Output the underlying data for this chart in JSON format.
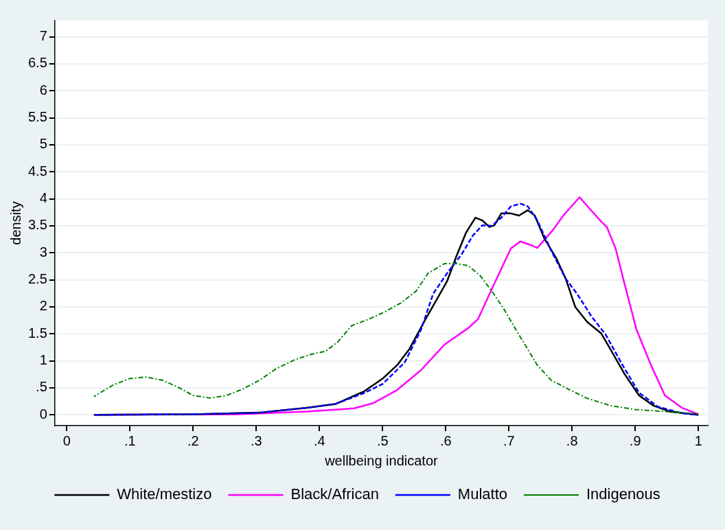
{
  "chart_data": {
    "type": "line",
    "xlabel": "wellbeing indicator",
    "ylabel": "density",
    "xlim": [
      -0.019,
      1.015
    ],
    "ylim": [
      -0.2,
      7.3
    ],
    "xticks": [
      0,
      {
        "value": 0.1,
        "label": ".1"
      },
      {
        "value": 0.2,
        "label": ".2"
      },
      {
        "value": 0.3,
        "label": ".3"
      },
      {
        "value": 0.4,
        "label": ".4"
      },
      {
        "value": 0.5,
        "label": ".5"
      },
      {
        "value": 0.6,
        "label": ".6"
      },
      {
        "value": 0.7,
        "label": ".7"
      },
      {
        "value": 0.8,
        "label": ".8"
      },
      {
        "value": 0.9,
        "label": ".9"
      },
      1
    ],
    "yticks": [
      0,
      {
        "value": 0.5,
        "label": ".5"
      },
      1,
      1.5,
      2,
      2.5,
      3,
      3.5,
      4,
      4.5,
      5,
      5.5,
      6,
      6.5,
      7
    ],
    "grid": "y",
    "legend": "bottom",
    "marker": "none",
    "series": [
      {
        "name": "White/mestizo",
        "color": "#000000",
        "line_style": "solid",
        "x": [
          0.043,
          0.2,
          0.305,
          0.38,
          0.425,
          0.47,
          0.5,
          0.523,
          0.542,
          0.568,
          0.602,
          0.617,
          0.632,
          0.647,
          0.658,
          0.669,
          0.677,
          0.688,
          0.703,
          0.716,
          0.73,
          0.741,
          0.756,
          0.775,
          0.79,
          0.805,
          0.824,
          0.846,
          0.861,
          0.884,
          0.906,
          0.929,
          0.955,
          1.0
        ],
        "values": [
          0,
          0.01,
          0.04,
          0.13,
          0.2,
          0.43,
          0.67,
          0.92,
          1.21,
          1.77,
          2.47,
          2.94,
          3.37,
          3.65,
          3.6,
          3.48,
          3.51,
          3.73,
          3.73,
          3.69,
          3.79,
          3.69,
          3.27,
          2.9,
          2.52,
          2.0,
          1.72,
          1.51,
          1.21,
          0.74,
          0.36,
          0.17,
          0.06,
          0
        ]
      },
      {
        "name": "Black/African",
        "color": "#ff00ff",
        "line_style": "solid",
        "x": [
          0.043,
          0.268,
          0.38,
          0.455,
          0.486,
          0.523,
          0.561,
          0.598,
          0.636,
          0.651,
          0.673,
          0.703,
          0.718,
          0.733,
          0.745,
          0.771,
          0.786,
          0.812,
          0.823,
          0.846,
          0.855,
          0.869,
          0.883,
          0.902,
          0.925,
          0.947,
          0.974,
          1.0
        ],
        "values": [
          0,
          0.01,
          0.06,
          0.12,
          0.22,
          0.46,
          0.83,
          1.3,
          1.61,
          1.77,
          2.33,
          3.08,
          3.21,
          3.15,
          3.09,
          3.44,
          3.69,
          4.03,
          3.88,
          3.58,
          3.48,
          3.08,
          2.43,
          1.58,
          0.92,
          0.36,
          0.13,
          0.01
        ]
      },
      {
        "name": "Mulatto",
        "color": "#0000ff",
        "line_style": "dashed",
        "x": [
          0.043,
          0.2,
          0.305,
          0.38,
          0.425,
          0.47,
          0.5,
          0.535,
          0.561,
          0.58,
          0.602,
          0.625,
          0.643,
          0.658,
          0.673,
          0.688,
          0.703,
          0.718,
          0.73,
          0.745,
          0.767,
          0.79,
          0.808,
          0.831,
          0.853,
          0.88,
          0.906,
          0.936,
          0.974,
          1.0
        ],
        "values": [
          0,
          0.01,
          0.04,
          0.13,
          0.2,
          0.4,
          0.57,
          0.97,
          1.58,
          2.24,
          2.62,
          2.97,
          3.32,
          3.51,
          3.5,
          3.65,
          3.86,
          3.91,
          3.86,
          3.6,
          3.04,
          2.52,
          2.24,
          1.82,
          1.49,
          0.92,
          0.41,
          0.15,
          0.03,
          0
        ]
      },
      {
        "name": "Indigenous",
        "color": "#008000",
        "line_style": "dashdot",
        "x": [
          0.043,
          0.073,
          0.099,
          0.125,
          0.152,
          0.178,
          0.2,
          0.227,
          0.253,
          0.279,
          0.305,
          0.331,
          0.361,
          0.384,
          0.41,
          0.429,
          0.451,
          0.478,
          0.504,
          0.53,
          0.553,
          0.572,
          0.598,
          0.617,
          0.636,
          0.655,
          0.673,
          0.692,
          0.711,
          0.73,
          0.745,
          0.767,
          0.797,
          0.823,
          0.861,
          0.899,
          0.936,
          1.0
        ],
        "values": [
          0.34,
          0.55,
          0.67,
          0.7,
          0.64,
          0.5,
          0.36,
          0.31,
          0.36,
          0.48,
          0.64,
          0.85,
          1.02,
          1.11,
          1.18,
          1.35,
          1.65,
          1.77,
          1.91,
          2.08,
          2.29,
          2.62,
          2.8,
          2.8,
          2.76,
          2.57,
          2.29,
          1.96,
          1.58,
          1.21,
          0.92,
          0.64,
          0.46,
          0.31,
          0.17,
          0.1,
          0.07,
          0.02
        ]
      }
    ]
  }
}
